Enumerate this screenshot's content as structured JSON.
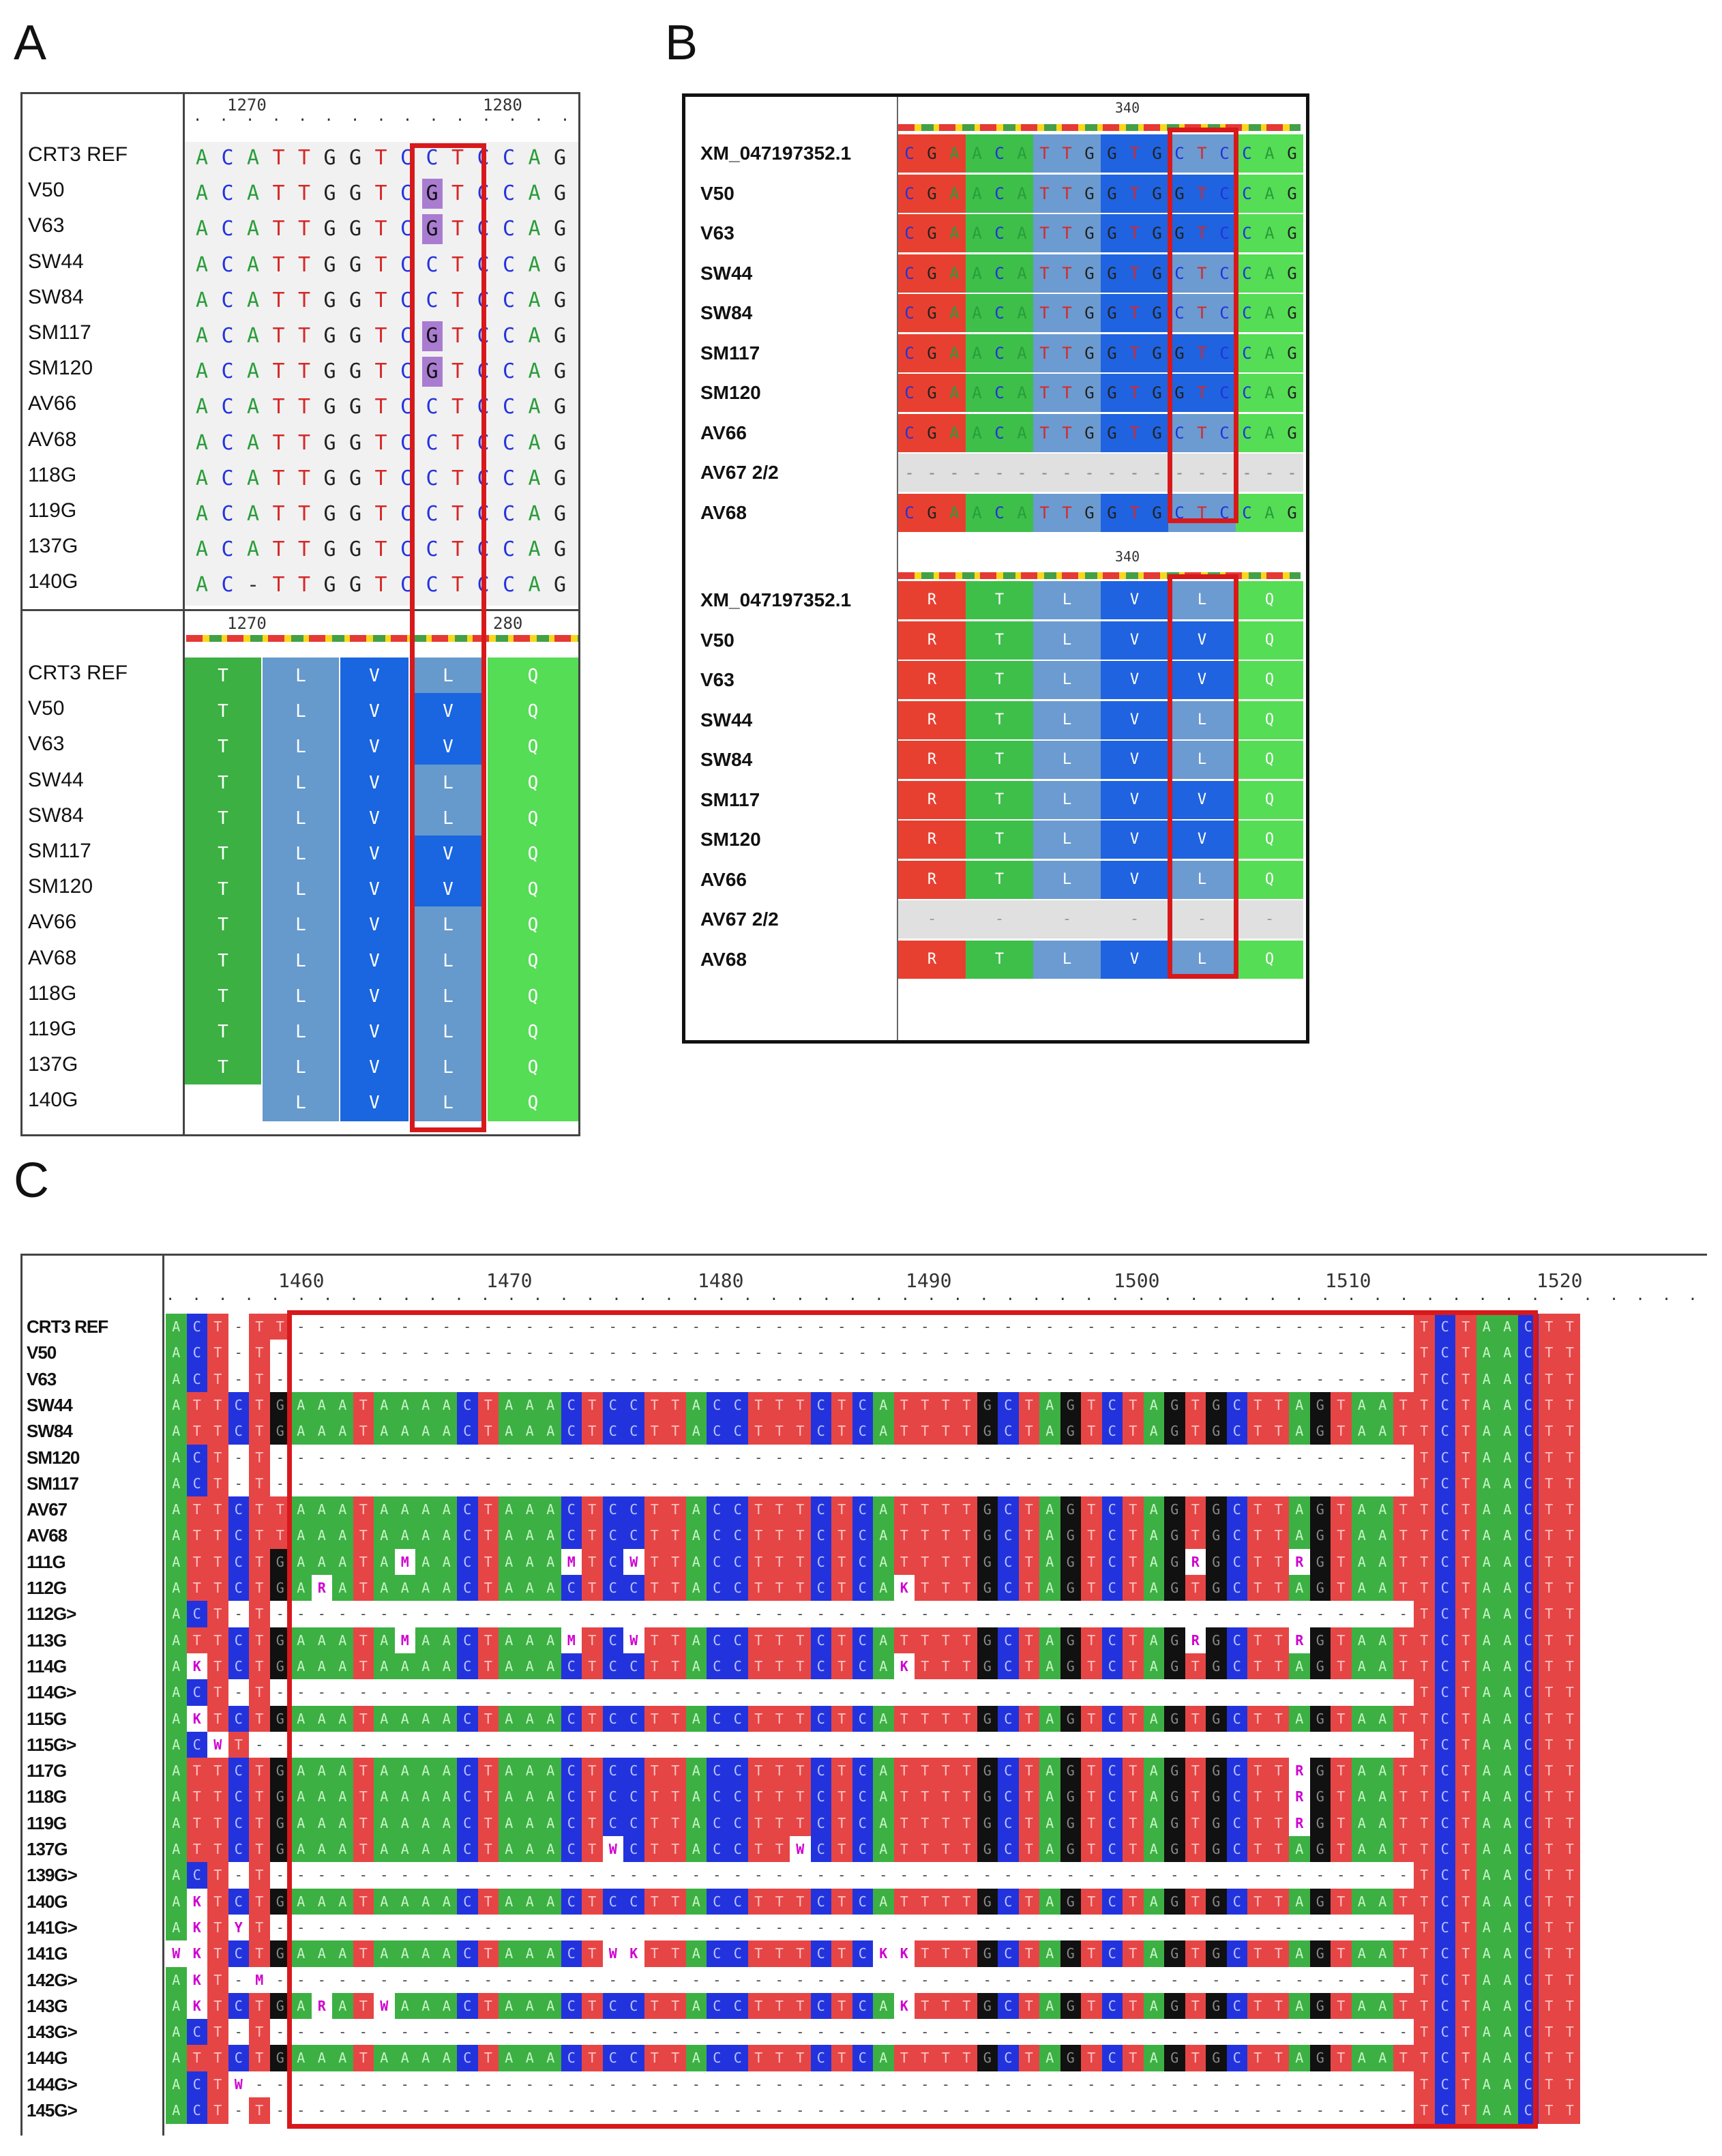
{
  "panel_labels": {
    "a": "A",
    "b": "B",
    "c": "C"
  },
  "panel_a": {
    "ruler": {
      "left": "1270",
      "right": "1280"
    },
    "ruler_aa": {
      "left": "1270",
      "right": "280"
    },
    "names": [
      "CRT3 REF",
      "V50",
      "V63",
      "SW44",
      "SW84",
      "SM117",
      "SM120",
      "AV66",
      "AV68",
      "118G",
      "119G",
      "137G",
      "140G"
    ],
    "nt_rows": [
      [
        "A",
        "C",
        "A",
        "T",
        "T",
        "G",
        "G",
        "T",
        "C",
        "C",
        "T",
        "C",
        "C",
        "A",
        "G"
      ],
      [
        "A",
        "C",
        "A",
        "T",
        "T",
        "G",
        "G",
        "T",
        "C",
        "G",
        "T",
        "C",
        "C",
        "A",
        "G"
      ],
      [
        "A",
        "C",
        "A",
        "T",
        "T",
        "G",
        "G",
        "T",
        "C",
        "G",
        "T",
        "C",
        "C",
        "A",
        "G"
      ],
      [
        "A",
        "C",
        "A",
        "T",
        "T",
        "G",
        "G",
        "T",
        "C",
        "C",
        "T",
        "C",
        "C",
        "A",
        "G"
      ],
      [
        "A",
        "C",
        "A",
        "T",
        "T",
        "G",
        "G",
        "T",
        "C",
        "C",
        "T",
        "C",
        "C",
        "A",
        "G"
      ],
      [
        "A",
        "C",
        "A",
        "T",
        "T",
        "G",
        "G",
        "T",
        "C",
        "G",
        "T",
        "C",
        "C",
        "A",
        "G"
      ],
      [
        "A",
        "C",
        "A",
        "T",
        "T",
        "G",
        "G",
        "T",
        "C",
        "G",
        "T",
        "C",
        "C",
        "A",
        "G"
      ],
      [
        "A",
        "C",
        "A",
        "T",
        "T",
        "G",
        "G",
        "T",
        "C",
        "C",
        "T",
        "C",
        "C",
        "A",
        "G"
      ],
      [
        "A",
        "C",
        "A",
        "T",
        "T",
        "G",
        "G",
        "T",
        "C",
        "C",
        "T",
        "C",
        "C",
        "A",
        "G"
      ],
      [
        "A",
        "C",
        "A",
        "T",
        "T",
        "G",
        "G",
        "T",
        "C",
        "C",
        "T",
        "C",
        "C",
        "A",
        "G"
      ],
      [
        "A",
        "C",
        "A",
        "T",
        "T",
        "G",
        "G",
        "T",
        "C",
        "C",
        "T",
        "C",
        "C",
        "A",
        "G"
      ],
      [
        "A",
        "C",
        "A",
        "T",
        "T",
        "G",
        "G",
        "T",
        "C",
        "C",
        "T",
        "C",
        "C",
        "A",
        "G"
      ],
      [
        "A",
        "C",
        "-",
        "T",
        "T",
        "G",
        "G",
        "T",
        "C",
        "C",
        "T",
        "C",
        "C",
        "A",
        "G"
      ]
    ],
    "aa_rows": [
      [
        "T",
        "L",
        "V",
        "L",
        "Q"
      ],
      [
        "T",
        "L",
        "V",
        "V",
        "Q"
      ],
      [
        "T",
        "L",
        "V",
        "V",
        "Q"
      ],
      [
        "T",
        "L",
        "V",
        "L",
        "Q"
      ],
      [
        "T",
        "L",
        "V",
        "L",
        "Q"
      ],
      [
        "T",
        "L",
        "V",
        "V",
        "Q"
      ],
      [
        "T",
        "L",
        "V",
        "V",
        "Q"
      ],
      [
        "T",
        "L",
        "V",
        "L",
        "Q"
      ],
      [
        "T",
        "L",
        "V",
        "L",
        "Q"
      ],
      [
        "T",
        "L",
        "V",
        "L",
        "Q"
      ],
      [
        "T",
        "L",
        "V",
        "L",
        "Q"
      ],
      [
        "T",
        "L",
        "V",
        "L",
        "Q"
      ],
      [
        "",
        "L",
        "V",
        "L",
        "Q"
      ]
    ]
  },
  "panel_b": {
    "ruler": "340",
    "ruler_aa": "340",
    "names": [
      "XM_047197352.1",
      "V50",
      "V63",
      "SW44",
      "SW84",
      "SM117",
      "SM120",
      "AV66",
      "AV67 2/2",
      "AV68"
    ],
    "nt_rows": [
      [
        "C",
        "G",
        "A",
        "A",
        "C",
        "A",
        "T",
        "T",
        "G",
        "G",
        "T",
        "G",
        "C",
        "T",
        "C",
        "C",
        "A",
        "G"
      ],
      [
        "C",
        "G",
        "A",
        "A",
        "C",
        "A",
        "T",
        "T",
        "G",
        "G",
        "T",
        "G",
        "G",
        "T",
        "C",
        "C",
        "A",
        "G"
      ],
      [
        "C",
        "G",
        "A",
        "A",
        "C",
        "A",
        "T",
        "T",
        "G",
        "G",
        "T",
        "G",
        "G",
        "T",
        "C",
        "C",
        "A",
        "G"
      ],
      [
        "C",
        "G",
        "A",
        "A",
        "C",
        "A",
        "T",
        "T",
        "G",
        "G",
        "T",
        "G",
        "C",
        "T",
        "C",
        "C",
        "A",
        "G"
      ],
      [
        "C",
        "G",
        "A",
        "A",
        "C",
        "A",
        "T",
        "T",
        "G",
        "G",
        "T",
        "G",
        "C",
        "T",
        "C",
        "C",
        "A",
        "G"
      ],
      [
        "C",
        "G",
        "A",
        "A",
        "C",
        "A",
        "T",
        "T",
        "G",
        "G",
        "T",
        "G",
        "G",
        "T",
        "C",
        "C",
        "A",
        "G"
      ],
      [
        "C",
        "G",
        "A",
        "A",
        "C",
        "A",
        "T",
        "T",
        "G",
        "G",
        "T",
        "G",
        "G",
        "T",
        "C",
        "C",
        "A",
        "G"
      ],
      [
        "C",
        "G",
        "A",
        "A",
        "C",
        "A",
        "T",
        "T",
        "G",
        "G",
        "T",
        "G",
        "C",
        "T",
        "C",
        "C",
        "A",
        "G"
      ],
      [
        "-",
        "-",
        "-",
        "-",
        "-",
        "-",
        "-",
        "-",
        "-",
        "-",
        "-",
        "-",
        "-",
        "-",
        "-",
        "-",
        "-",
        "-"
      ],
      [
        "C",
        "G",
        "A",
        "A",
        "C",
        "A",
        "T",
        "T",
        "G",
        "G",
        "T",
        "G",
        "C",
        "T",
        "C",
        "C",
        "A",
        "G"
      ]
    ],
    "aa_rows": [
      [
        "R",
        "T",
        "L",
        "V",
        "L",
        "Q"
      ],
      [
        "R",
        "T",
        "L",
        "V",
        "V",
        "Q"
      ],
      [
        "R",
        "T",
        "L",
        "V",
        "V",
        "Q"
      ],
      [
        "R",
        "T",
        "L",
        "V",
        "L",
        "Q"
      ],
      [
        "R",
        "T",
        "L",
        "V",
        "L",
        "Q"
      ],
      [
        "R",
        "T",
        "L",
        "V",
        "V",
        "Q"
      ],
      [
        "R",
        "T",
        "L",
        "V",
        "V",
        "Q"
      ],
      [
        "R",
        "T",
        "L",
        "V",
        "L",
        "Q"
      ],
      [
        "-",
        "-",
        "-",
        "-",
        "-",
        "-"
      ],
      [
        "R",
        "T",
        "L",
        "V",
        "L",
        "Q"
      ]
    ]
  },
  "panel_c": {
    "ruler": [
      "1460",
      "1470",
      "1480",
      "1490",
      "1500",
      "1510",
      "1520"
    ],
    "names": [
      "CRT3 REF",
      "V50",
      "V63",
      "SW44",
      "SW84",
      "SM120",
      "SM117",
      "AV67",
      "AV68",
      "111G",
      "112G",
      "112G>",
      "113G",
      "114G",
      "114G>",
      "115G",
      "115G>",
      "117G",
      "118G",
      "119G",
      "137G",
      "139G>",
      "140G",
      "141G>",
      "141G",
      "142G>",
      "143G",
      "143G>",
      "144G",
      "144G>",
      "145G>"
    ],
    "left_cols": [
      "ACT-TT",
      "ACT-T",
      "ACT-T",
      "ATTCTG",
      "ATTCTG",
      "ACT-T",
      "ACT-T",
      "ATTCTT",
      "ATTCTT",
      "ATTCTG",
      "ATTCTG",
      "ACT-T",
      "ATTCTG",
      "AKTCTG",
      "ACT-T",
      "AKTCTG",
      "ACWT",
      "ATTCTG",
      "ATTCTG",
      "ATTCTG",
      "ATTCTG",
      "ACT-T",
      "AKTCTG",
      "AKTYT",
      "WKTCTG",
      "AKT-M",
      "AKTCTG",
      "ACT-T",
      "ATTCTG",
      "ACTW",
      "ACT-T"
    ],
    "full_seq": "ACTTTATCTAAATAAAACTAAACTCCTTACCTTTCTCATTTTGCTAGTCTAGTGCTTAGTAATGCT",
    "mid_ref": "AAATAAAACTAAACTCCTTACCTTTCTCATTTTGCTAGTCTAGTGCTTAGTAAT",
    "right_block": "TCTAACTT",
    "iupac": [
      {
        "row": 9,
        "offsets": [
          5,
          13,
          16,
          43,
          48,
          56,
          60
        ],
        "chars": [
          "M",
          "M",
          "W",
          "R",
          "R",
          "M",
          "S"
        ]
      },
      {
        "row": 10,
        "offsets": [
          1,
          29
        ],
        "chars": [
          "R",
          "K"
        ]
      },
      {
        "row": 12,
        "offsets": [
          5,
          13,
          16,
          43,
          48,
          56,
          60
        ],
        "chars": [
          "M",
          "M",
          "W",
          "R",
          "R",
          "M",
          "S"
        ]
      },
      {
        "row": 13,
        "offsets": [
          29,
          56
        ],
        "chars": [
          "K",
          "R"
        ]
      },
      {
        "row": 17,
        "offsets": [
          48,
          60
        ],
        "chars": [
          "R",
          "Y"
        ]
      },
      {
        "row": 18,
        "offsets": [
          48
        ],
        "chars": [
          "R"
        ]
      },
      {
        "row": 19,
        "offsets": [
          48,
          60
        ],
        "chars": [
          "R",
          "Y"
        ]
      },
      {
        "row": 20,
        "offsets": [
          15,
          24
        ],
        "chars": [
          "W",
          "W"
        ]
      },
      {
        "row": 24,
        "offsets": [
          15,
          16,
          28,
          29
        ],
        "chars": [
          "W",
          "K",
          "K",
          "K"
        ]
      },
      {
        "row": 26,
        "offsets": [
          1,
          4,
          29
        ],
        "chars": [
          "R",
          "W",
          "K"
        ]
      }
    ],
    "gap_rows": [
      0,
      1,
      2,
      5,
      6,
      11,
      14,
      16,
      21,
      23,
      25,
      27,
      29,
      30
    ],
    "partial_rows": {
      "15": "AAAAATATATCTC",
      "26": ""
    }
  },
  "colors": {
    "A": "#3cb043",
    "C": "#2233dd",
    "G": "#111111",
    "T": "#e64545",
    "L": "#6699cc",
    "V": "#1a66e0",
    "Q": "#55dd55",
    "R": "#e84030",
    "red_box": "#d7191c",
    "sel": "#a97cd1"
  }
}
